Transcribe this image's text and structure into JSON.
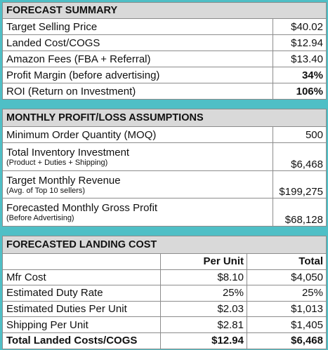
{
  "sections": [
    {
      "title": "FORECAST SUMMARY",
      "rows": [
        {
          "label": "Target Selling Price",
          "value": "$40.02"
        },
        {
          "label": "Landed Cost/COGS",
          "value": "$12.94"
        },
        {
          "label": "Amazon Fees (FBA + Referral)",
          "value": "$13.40"
        },
        {
          "label": "Profit Margin (before advertising)",
          "value": "34%"
        },
        {
          "label": "ROI (Return on Investment)",
          "value": "106%"
        }
      ]
    },
    {
      "title": "MONTHLY PROFIT/LOSS ASSUMPTIONS",
      "rows": [
        {
          "label": "Minimum Order Quantity (MOQ)",
          "value": "500"
        },
        {
          "label": "Total Inventory Investment",
          "note": "(Product + Duties + Shipping)",
          "value": "$6,468"
        },
        {
          "label": "Target Monthly Revenue",
          "note": "(Avg. of Top 10 sellers)",
          "value": "$199,275"
        },
        {
          "label": "Forecasted Monthly Gross Profit",
          "note": "(Before Advertising)",
          "value": "$68,128"
        }
      ]
    }
  ],
  "landing_cost": {
    "title": "FORECASTED LANDING COST",
    "columns": [
      "Per Unit",
      "Total"
    ],
    "rows": [
      [
        "Mfr Cost",
        "$8.10",
        "$4,050"
      ],
      [
        "Estimated Duty Rate",
        "25%",
        "25%"
      ],
      [
        "Estimated Duties Per Unit",
        "$2.03",
        "$1,013"
      ],
      [
        "Shipping Per Unit",
        "$2.81",
        "$1,405"
      ],
      [
        "Total Landed Costs/COGS",
        "$12.94",
        "$6,468"
      ]
    ]
  }
}
